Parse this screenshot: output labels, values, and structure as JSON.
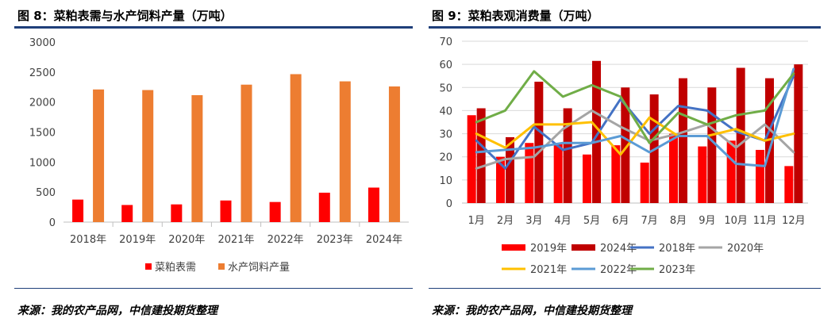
{
  "left": {
    "title": "图 8：菜粕表需与水产饲料产量（万吨）",
    "source": "来源：我的农产品网，中信建投期货整理"
  },
  "right": {
    "title": "图 9：菜粕表观消费量（万吨）",
    "source": "来源：我的农产品网，中信建投期货整理"
  },
  "chart_data": [
    {
      "type": "bar",
      "title": "图 8：菜粕表需与水产饲料产量（万吨）",
      "categories": [
        "2018年",
        "2019年",
        "2020年",
        "2021年",
        "2022年",
        "2023年",
        "2024年"
      ],
      "series": [
        {
          "name": "菜粕表需",
          "color": "#ff0000",
          "values": [
            375,
            285,
            295,
            360,
            335,
            490,
            575
          ]
        },
        {
          "name": "水产饲料产量",
          "color": "#ed7d31",
          "values": [
            2210,
            2200,
            2115,
            2290,
            2465,
            2345,
            2260
          ]
        }
      ],
      "ylim": [
        0,
        3000
      ],
      "yticks": [
        0,
        500,
        1000,
        1500,
        2000,
        2500,
        3000
      ],
      "grid": false,
      "legend": "bottom"
    },
    {
      "type": "bar+line",
      "title": "图 9：菜粕表观消费量（万吨）",
      "categories": [
        "1月",
        "2月",
        "3月",
        "4月",
        "5月",
        "6月",
        "7月",
        "8月",
        "9月",
        "10月",
        "11月",
        "12月"
      ],
      "bar_series": [
        {
          "name": "2019年",
          "color": "#ff0000",
          "values": [
            38,
            20,
            26,
            26,
            21,
            25,
            17.5,
            30,
            24.5,
            27,
            23,
            16
          ]
        },
        {
          "name": "2024年",
          "color": "#c00000",
          "values": [
            41,
            28.5,
            52.5,
            41,
            61.5,
            50,
            47,
            54,
            50,
            58.5,
            54,
            60
          ]
        }
      ],
      "line_series": [
        {
          "name": "2018年",
          "color": "#4472c4",
          "values": [
            27,
            15,
            33,
            23,
            26,
            45,
            30,
            42,
            40,
            31,
            27,
            55
          ]
        },
        {
          "name": "2020年",
          "color": "#a5a5a5",
          "values": [
            15,
            19,
            20,
            32,
            40,
            33,
            27,
            30,
            34,
            24,
            34,
            22
          ]
        },
        {
          "name": "2021年",
          "color": "#ffc000",
          "values": [
            30,
            24,
            34,
            34,
            35,
            21,
            37,
            29,
            29,
            32,
            27,
            30
          ]
        },
        {
          "name": "2022年",
          "color": "#5b9bd5",
          "values": [
            22,
            23,
            24,
            26,
            26,
            29,
            22,
            29,
            29,
            17,
            16,
            58
          ]
        },
        {
          "name": "2023年",
          "color": "#70ad47",
          "values": [
            35,
            40,
            57,
            46,
            51,
            46,
            26,
            39,
            34,
            38,
            40,
            56
          ]
        }
      ],
      "ylim": [
        0,
        70
      ],
      "yticks": [
        0,
        10,
        20,
        30,
        40,
        50,
        60,
        70
      ],
      "grid": true,
      "legend": "bottom",
      "legend_order": [
        "2019年",
        "2024年",
        "2018年",
        "2020年",
        "2021年",
        "2022年",
        "2023年"
      ]
    }
  ]
}
